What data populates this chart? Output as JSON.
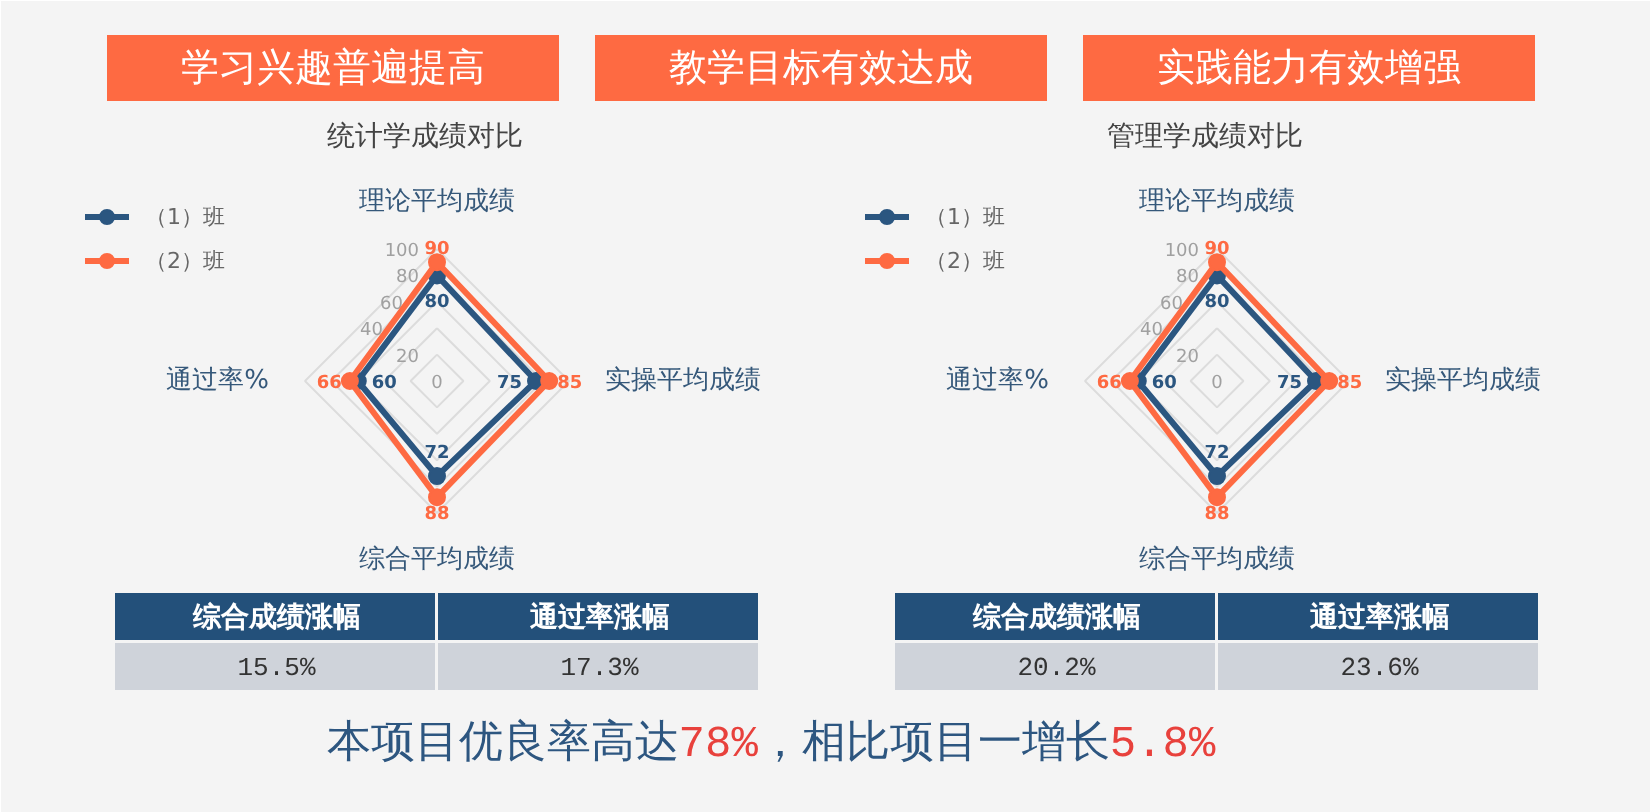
{
  "chart_data": [
    {
      "type": "other",
      "annotations": [
        "学习兴趣普遍提高",
        "教学目标有效达成",
        "实践能力有效增强"
      ]
    },
    {
      "type": "radar",
      "title": "统计学成绩对比",
      "categories": [
        "理论平均成绩",
        "实操平均成绩",
        "综合平均成绩",
        "通过率%"
      ],
      "series": [
        {
          "name": "（1）班",
          "color": "#2b5680",
          "values": [
            80,
            75,
            72,
            60
          ]
        },
        {
          "name": "（2）班",
          "color": "#fe6a42",
          "values": [
            90,
            85,
            88,
            66
          ]
        }
      ],
      "ylim": [
        0,
        100
      ],
      "yticks": [
        0,
        20,
        40,
        60,
        80,
        100
      ],
      "grid": true,
      "legend": "top left",
      "marker": "circle",
      "data_labels": true,
      "annotations": [
        "综合成绩涨幅",
        "通过率涨幅",
        "15.5%",
        "17.3%"
      ]
    },
    {
      "type": "radar",
      "title": "管理学成绩对比",
      "categories": [
        "理论平均成绩",
        "实操平均成绩",
        "综合平均成绩",
        "通过率%"
      ],
      "series": [
        {
          "name": "（1）班",
          "color": "#2b5680",
          "values": [
            80,
            75,
            72,
            60
          ]
        },
        {
          "name": "（2）班",
          "color": "#fe6a42",
          "values": [
            90,
            85,
            88,
            66
          ]
        }
      ],
      "ylim": [
        0,
        100
      ],
      "yticks": [
        0,
        20,
        40,
        60,
        80,
        100
      ],
      "grid": true,
      "legend": "top left",
      "marker": "circle",
      "data_labels": true,
      "annotations": [
        "综合成绩涨幅",
        "通过率涨幅",
        "20.2%",
        "23.6%"
      ]
    },
    {
      "type": "other",
      "annotations": [
        "本项目优良率高达",
        "78%",
        "，相比项目一增长",
        "5.8%"
      ]
    }
  ]
}
